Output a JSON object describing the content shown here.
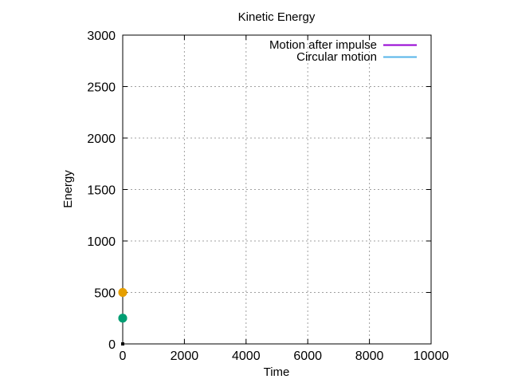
{
  "chart_data": {
    "type": "line",
    "title": "Kinetic Energy",
    "xlabel": "Time",
    "ylabel": "Energy",
    "xlim": [
      0,
      10000
    ],
    "ylim": [
      0,
      3000
    ],
    "xticks": [
      0,
      2000,
      4000,
      6000,
      8000,
      10000
    ],
    "yticks": [
      0,
      500,
      1000,
      1500,
      2000,
      2500,
      3000
    ],
    "grid": true,
    "legend_position": "top-right",
    "series": [
      {
        "name": "Motion after impulse",
        "color": "#9400d3",
        "line_x": [
          0,
          0
        ],
        "line_y": [
          500,
          500
        ],
        "marker_color": "#e69f00",
        "markers": [
          {
            "x": 0,
            "y": 500
          },
          {
            "x": 0,
            "y": 500
          }
        ]
      },
      {
        "name": "Circular motion",
        "color": "#56b4e9",
        "line_x": [
          0,
          0
        ],
        "line_y": [
          250,
          250
        ],
        "marker_color": "#009e73",
        "markers": [
          {
            "x": 0,
            "y": 250
          },
          {
            "x": 0,
            "y": 250
          }
        ]
      }
    ],
    "extra_points": [
      {
        "x": 0,
        "y": 0,
        "color": "#000000"
      }
    ]
  }
}
